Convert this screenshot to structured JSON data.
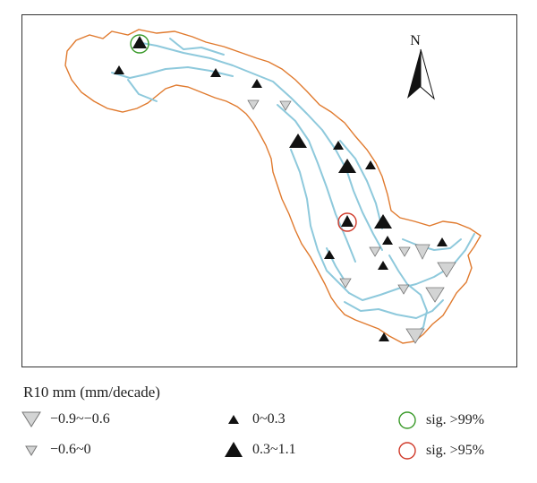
{
  "north_arrow": {
    "label": "N"
  },
  "legend": {
    "title": "R10 mm (mm/decade)",
    "items": [
      {
        "symbol": "triangle-down-large",
        "label": "−0.9~−0.6",
        "fill": "#d3d4d4"
      },
      {
        "symbol": "triangle-down-small",
        "label": "−0.6~0",
        "fill": "#d3d4d4"
      },
      {
        "symbol": "triangle-up-small",
        "label": "0~0.3",
        "fill": "#111111"
      },
      {
        "symbol": "triangle-up-large",
        "label": "0.3~1.1",
        "fill": "#111111"
      },
      {
        "symbol": "circle-green",
        "label": "sig. >99%",
        "stroke": "#3a9a2a"
      },
      {
        "symbol": "circle-red",
        "label": "sig. >95%",
        "stroke": "#d03a2a"
      }
    ]
  },
  "colors": {
    "basin_boundary": "#e07a2e",
    "river": "#8ec9dc",
    "frame": "#333333"
  }
}
